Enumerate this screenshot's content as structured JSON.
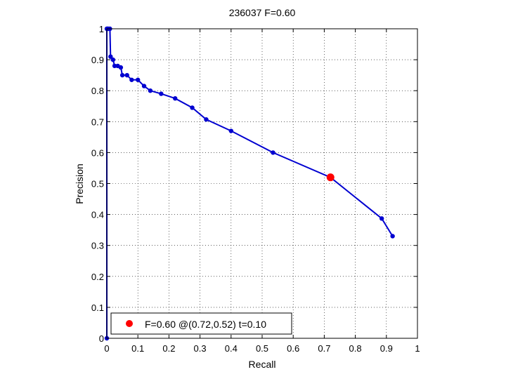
{
  "chart_data": {
    "type": "line",
    "title": "236037 F=0.60",
    "xlabel": "Recall",
    "ylabel": "Precision",
    "xlim": [
      0,
      1
    ],
    "ylim": [
      0,
      1
    ],
    "xticks": [
      "0",
      "0.1",
      "0.2",
      "0.3",
      "0.4",
      "0.5",
      "0.6",
      "0.7",
      "0.8",
      "0.9",
      "1"
    ],
    "yticks": [
      "0",
      "0.1",
      "0.2",
      "0.3",
      "0.4",
      "0.5",
      "0.6",
      "0.7",
      "0.8",
      "0.9",
      "1"
    ],
    "grid": true,
    "legend_position": "bottom-left",
    "series": [
      {
        "color": "#0000d0",
        "marker": "dot",
        "x": [
          0.0,
          0.0,
          0.002,
          0.005,
          0.01,
          0.012,
          0.02,
          0.025,
          0.035,
          0.045,
          0.05,
          0.065,
          0.08,
          0.1,
          0.12,
          0.14,
          0.175,
          0.22,
          0.275,
          0.32,
          0.4,
          0.535,
          0.72,
          0.885,
          0.92
        ],
        "y": [
          0.0,
          1.0,
          1.0,
          1.0,
          1.0,
          0.91,
          0.9,
          0.88,
          0.88,
          0.875,
          0.85,
          0.85,
          0.835,
          0.835,
          0.815,
          0.8,
          0.79,
          0.775,
          0.745,
          0.707,
          0.67,
          0.6,
          0.52,
          0.387,
          0.33
        ]
      }
    ],
    "highlight": {
      "label": "F=0.60 @(0.72,0.52) t=0.10",
      "x": 0.72,
      "y": 0.52,
      "color": "#ff0000"
    }
  }
}
